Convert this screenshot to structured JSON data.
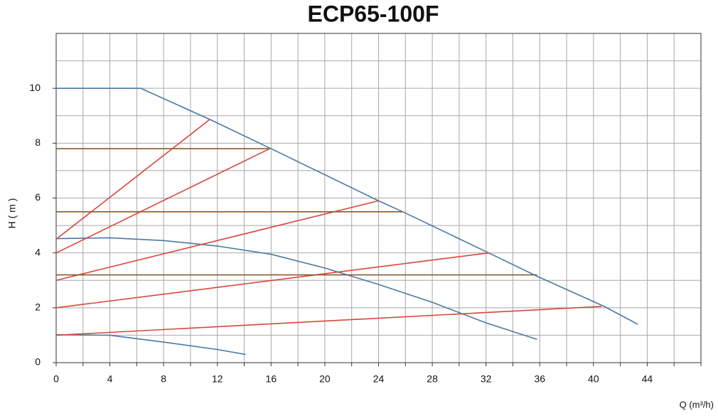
{
  "chart_data": {
    "type": "line",
    "title": "ECP65-100F",
    "x_label": "Q (m³/h)",
    "y_label": "H ( m )",
    "xlim": [
      0,
      48
    ],
    "ylim": [
      0,
      12
    ],
    "xticks": [
      0,
      4,
      8,
      12,
      16,
      20,
      24,
      28,
      32,
      36,
      40,
      44
    ],
    "yticks": [
      0,
      2,
      4,
      6,
      8,
      10
    ],
    "xgrid": [
      0,
      2,
      4,
      6,
      8,
      10,
      12,
      14,
      16,
      18,
      20,
      22,
      24,
      26,
      28,
      30,
      32,
      34,
      36,
      38,
      40,
      42,
      44,
      46,
      48
    ],
    "ygrid": [
      0,
      1,
      2,
      3,
      4,
      5,
      6,
      7,
      8,
      9,
      10,
      11,
      12
    ],
    "grid": true,
    "series": [
      {
        "color": "#4a78a8",
        "x": [
          0,
          6.3,
          11.5,
          16,
          24,
          25.8,
          32.2,
          35.8,
          40.8,
          43.3
        ],
        "values": [
          10,
          10,
          8.85,
          7.8,
          5.9,
          5.5,
          4.0,
          3.15,
          2.05,
          1.4
        ]
      },
      {
        "color": "#4a78a8",
        "x": [
          0,
          4,
          8,
          12,
          16,
          20,
          24,
          28,
          32,
          35.8
        ],
        "values": [
          4.52,
          4.55,
          4.45,
          4.25,
          3.95,
          3.45,
          2.85,
          2.2,
          1.45,
          0.85
        ]
      },
      {
        "color": "#4a78a8",
        "x": [
          0,
          4,
          8,
          12,
          14.1
        ],
        "values": [
          1.02,
          1.0,
          0.75,
          0.48,
          0.3
        ]
      },
      {
        "color": "#d9463a",
        "x": [
          0,
          11.4
        ],
        "values": [
          4.5,
          8.85
        ]
      },
      {
        "color": "#d9463a",
        "x": [
          0,
          15.9
        ],
        "values": [
          4.0,
          7.8
        ]
      },
      {
        "color": "#d9463a",
        "x": [
          0,
          24
        ],
        "values": [
          3.0,
          5.9
        ]
      },
      {
        "color": "#d9463a",
        "x": [
          0,
          32.2
        ],
        "values": [
          2.0,
          4.0
        ]
      },
      {
        "color": "#d9463a",
        "x": [
          0,
          40.6
        ],
        "values": [
          1.0,
          2.05
        ]
      },
      {
        "color": "#8b5a2b",
        "x": [
          0,
          15.9
        ],
        "values": [
          7.8,
          7.8
        ]
      },
      {
        "color": "#8b5a2b",
        "x": [
          0,
          25.8
        ],
        "values": [
          5.5,
          5.5
        ]
      },
      {
        "color": "#8b5a2b",
        "x": [
          0,
          35.8
        ],
        "values": [
          3.2,
          3.2
        ]
      }
    ]
  }
}
